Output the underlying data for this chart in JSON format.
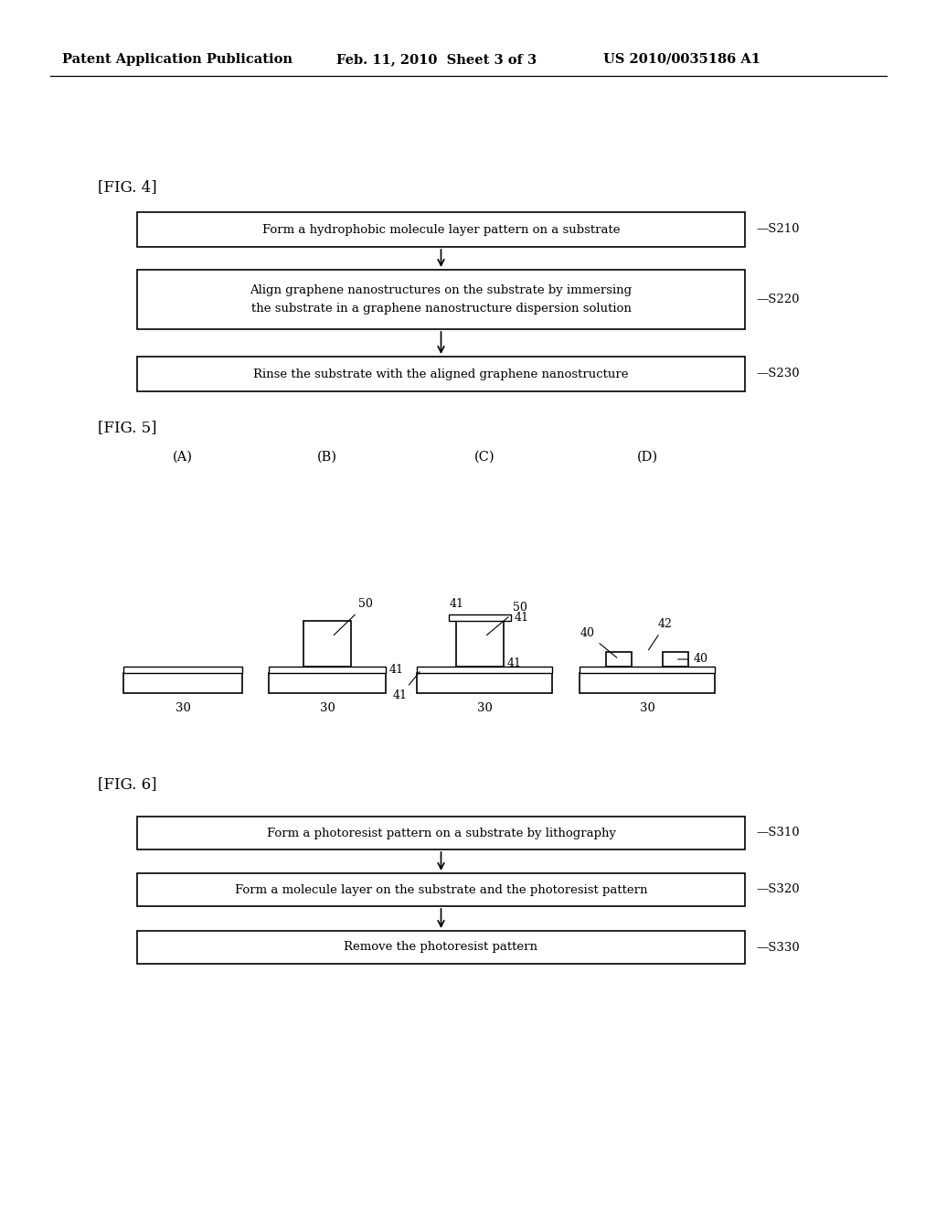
{
  "bg_color": "#ffffff",
  "header_left": "Patent Application Publication",
  "header_mid": "Feb. 11, 2010  Sheet 3 of 3",
  "header_right": "US 2010/0035186 A1",
  "fig4_label": "[FIG. 4]",
  "fig4_boxes": [
    "Form a hydrophobic molecule layer pattern on a substrate",
    "Align graphene nanostructures on the substrate by immersing\nthe substrate in a graphene nanostructure dispersion solution",
    "Rinse the substrate with the aligned graphene nanostructure"
  ],
  "fig4_steps": [
    "S210",
    "S220",
    "S230"
  ],
  "fig5_label": "[FIG. 5]",
  "fig5_cols": [
    "(A)",
    "(B)",
    "(C)",
    "(D)"
  ],
  "fig6_label": "[FIG. 6]",
  "fig6_boxes": [
    "Form a photoresist pattern on a substrate by lithography",
    "Form a molecule layer on the substrate and the photoresist pattern",
    "Remove the photoresist pattern"
  ],
  "fig6_steps": [
    "S310",
    "S320",
    "S330"
  ]
}
